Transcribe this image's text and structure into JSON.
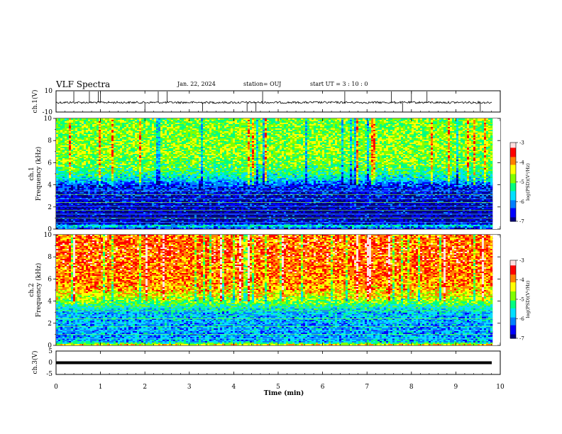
{
  "header": {
    "title": "VLF Spectra",
    "date": "Jan. 22, 2024",
    "station": "station= OUJ",
    "start_ut": "start UT =  3 : 10 : 0"
  },
  "chart_data": [
    {
      "type": "line",
      "panel": "ch.1 waveform",
      "ylabel": "ch.1(V)",
      "ylim": [
        -10,
        10
      ],
      "y_ticks": [
        "10",
        "-10"
      ],
      "xlim": [
        0,
        10
      ],
      "series": [
        {
          "baseline": 0,
          "noise_amplitude": 1,
          "spike_x_min": [
            0.4,
            0.75,
            0.95,
            1.0,
            2.0,
            2.3,
            2.5,
            3.3,
            4.3,
            4.5,
            4.65,
            6.5,
            7.55,
            7.8,
            8.0,
            8.35,
            9.55
          ]
        }
      ]
    },
    {
      "type": "heatmap",
      "panel": "ch.1 spectrogram",
      "ylabel": "ch.1\nFrequency (kHz)",
      "ylim": [
        0,
        10
      ],
      "y_ticks": [
        "0",
        "2",
        "4",
        "6",
        "8",
        "10"
      ],
      "xlim": [
        0,
        9.83
      ],
      "colorbar": {
        "label": "log(PSD)(V²/Hz)",
        "range": [
          -7,
          -3
        ],
        "ticks": [
          "-3",
          "-4",
          "-5",
          "-6",
          "-7"
        ]
      },
      "log_psd_profile_by_kHz": [
        [
          0.0,
          -6.6
        ],
        [
          0.3,
          -5.5
        ],
        [
          0.5,
          -6.8
        ],
        [
          1.5,
          -6.9
        ],
        [
          3.0,
          -6.7
        ],
        [
          4.0,
          -6.4
        ],
        [
          4.5,
          -5.6
        ],
        [
          5.5,
          -5.0
        ],
        [
          7.0,
          -4.7
        ],
        [
          9.0,
          -4.8
        ],
        [
          10.0,
          -4.9
        ]
      ],
      "harmonic_lines_kHz": [
        0.6,
        1.0,
        1.35,
        1.7,
        2.05,
        2.4,
        2.75,
        3.1,
        3.45
      ]
    },
    {
      "type": "heatmap",
      "panel": "ch.2 spectrogram",
      "ylabel": "ch.2\nFrequency (kHz)",
      "ylim": [
        0,
        10
      ],
      "y_ticks": [
        "0",
        "2",
        "4",
        "6",
        "8",
        "10"
      ],
      "xlim": [
        0,
        9.83
      ],
      "colorbar": {
        "label": "log(PSD)(V²/Hz)",
        "range": [
          -7,
          -3
        ],
        "ticks": [
          "-3",
          "-4",
          "-5",
          "-6",
          "-7"
        ]
      },
      "log_psd_profile_by_kHz": [
        [
          0.0,
          -4.0
        ],
        [
          0.3,
          -5.8
        ],
        [
          1.0,
          -6.0
        ],
        [
          3.0,
          -5.8
        ],
        [
          3.6,
          -5.2
        ],
        [
          4.2,
          -4.6
        ],
        [
          5.0,
          -4.1
        ],
        [
          6.5,
          -3.8
        ],
        [
          8.5,
          -3.7
        ],
        [
          10.0,
          -3.8
        ]
      ],
      "harmonic_lines_kHz": [
        0.6,
        1.0,
        1.35,
        1.7,
        2.05,
        2.4,
        2.75,
        3.1,
        3.45
      ]
    },
    {
      "type": "line",
      "panel": "ch.3 waveform",
      "ylabel": "ch.3(V)",
      "ylim": [
        -5,
        5
      ],
      "y_ticks": [
        "5",
        "0",
        "-5"
      ],
      "xlim": [
        0,
        10
      ],
      "series": [
        {
          "level": 0
        }
      ]
    }
  ],
  "xaxis": {
    "label": "Time (min)",
    "ticks": [
      "0",
      "1",
      "2",
      "3",
      "4",
      "5",
      "6",
      "7",
      "8",
      "9",
      "10"
    ]
  },
  "colorbar_ticks": [
    "-3",
    "-4",
    "-5",
    "-6",
    "-7"
  ],
  "colorbar_label": "log(PSD)(V²/Hz)",
  "colormap": [
    "#000080",
    "#0000ff",
    "#0080ff",
    "#00e0ff",
    "#00ff80",
    "#80ff00",
    "#ffff00",
    "#ff8000",
    "#ff0000",
    "#ffe0e0"
  ]
}
